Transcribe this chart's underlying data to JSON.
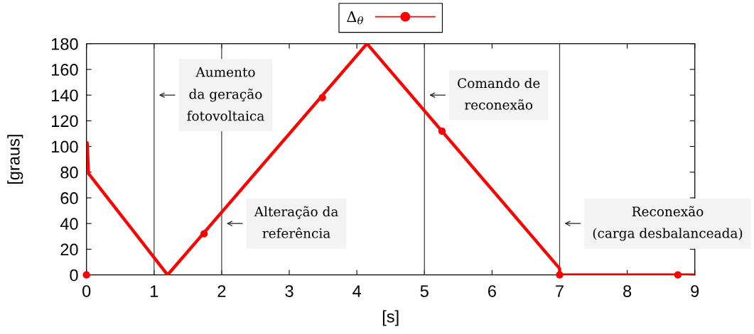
{
  "chart_data": {
    "type": "line",
    "xlabel": "[s]",
    "ylabel": "[graus]",
    "xlim": [
      0,
      9
    ],
    "ylim": [
      0,
      180
    ],
    "xticks": [
      0,
      1,
      2,
      3,
      4,
      5,
      6,
      7,
      8,
      9
    ],
    "yticks": [
      0,
      20,
      40,
      60,
      80,
      100,
      120,
      140,
      160,
      180
    ],
    "legend": "top",
    "series": [
      {
        "name": "Δ$_{θ}$",
        "color": "#ff0000",
        "marker": "none",
        "line_style": "solid",
        "x": [
          0.01,
          0.03,
          1.2,
          4.15,
          7.0,
          7.0,
          9
        ],
        "values": [
          103,
          79,
          0,
          180,
          5,
          0,
          0
        ]
      },
      {
        "type": "scatter",
        "color": "#ff0000",
        "marker": "circle",
        "x": [
          0,
          1.74,
          3.49,
          5.26,
          7.0,
          8.75
        ],
        "values": [
          0,
          32,
          138,
          112,
          0,
          0
        ]
      }
    ],
    "ref_lines": [
      {
        "axis": "x",
        "value": 1,
        "color": "#404040"
      },
      {
        "axis": "x",
        "value": 2,
        "color": "#404040"
      },
      {
        "axis": "x",
        "value": 5,
        "color": "#404040"
      },
      {
        "axis": "x",
        "value": 7,
        "color": "#404040"
      }
    ],
    "annotations": [
      {
        "text": "Aumento\nda geração\nfotovoltaica",
        "x": 1,
        "y": 140
      },
      {
        "text": "Alteração da\nreferência",
        "x": 2,
        "y": 40
      },
      {
        "text": "Comando de\nreconexão",
        "x": 5,
        "y": 140
      },
      {
        "text": "Reconexão\n(carga desbalanceada)",
        "x": 7,
        "y": 40
      }
    ]
  }
}
